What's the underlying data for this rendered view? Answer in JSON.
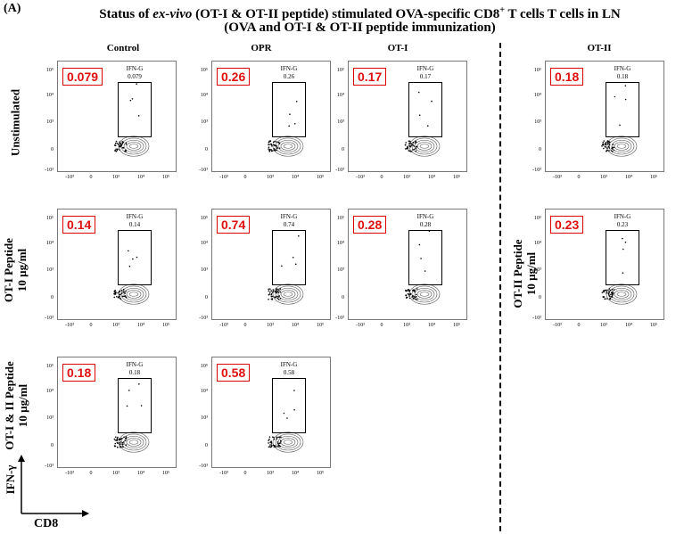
{
  "panel_label": "(A)",
  "title_line1_a": "Status of ",
  "title_line1_italic": "ex-vivo",
  "title_line1_b": " (OT-I & OT-II peptide) stimulated OVA-specific CD8",
  "title_line1_sup": "+",
  "title_line1_c": " T cells T cells in LN",
  "title_line2": "(OVA and OT-I & OT-II peptide immunization)",
  "columns": [
    "Control",
    "OPR",
    "OT-I",
    "OT-II"
  ],
  "rows": {
    "r1": "Unstimulated",
    "r2_line1": "OT-I Peptide",
    "r2_line2": "10 µg/ml",
    "r3_line1": "OT-I & II Peptide",
    "r3_line2": "10 µg/ml",
    "r2_right_line1": "OT-II Peptide",
    "r2_right_line2": "10 µg/ml"
  },
  "gate_name": "IFN-G",
  "y_ticks": [
    "10⁵",
    "10⁴",
    "10³",
    "0",
    "-10³"
  ],
  "x_ticks": [
    "-10³",
    "0",
    "10³",
    "10⁴",
    "10⁵"
  ],
  "axes": {
    "y": "IFN-γ",
    "x": "CD8"
  },
  "plots": {
    "unstim_control": {
      "pct": "0.079",
      "gate_value": "0.079"
    },
    "unstim_opr": {
      "pct": "0.26",
      "gate_value": "0.26"
    },
    "unstim_ot1": {
      "pct": "0.17",
      "gate_value": "0.17"
    },
    "unstim_ot2": {
      "pct": "0.18",
      "gate_value": "0.18"
    },
    "ot1_control": {
      "pct": "0.14",
      "gate_value": "0.14"
    },
    "ot1_opr": {
      "pct": "0.74",
      "gate_value": "0.74"
    },
    "ot1_ot1": {
      "pct": "0.28",
      "gate_value": "0.28"
    },
    "ot2_ot2": {
      "pct": "0.23",
      "gate_value": "0.23"
    },
    "ot12_control": {
      "pct": "0.18",
      "gate_value": "0.18"
    },
    "ot12_opr": {
      "pct": "0.58",
      "gate_value": "0.58"
    }
  }
}
